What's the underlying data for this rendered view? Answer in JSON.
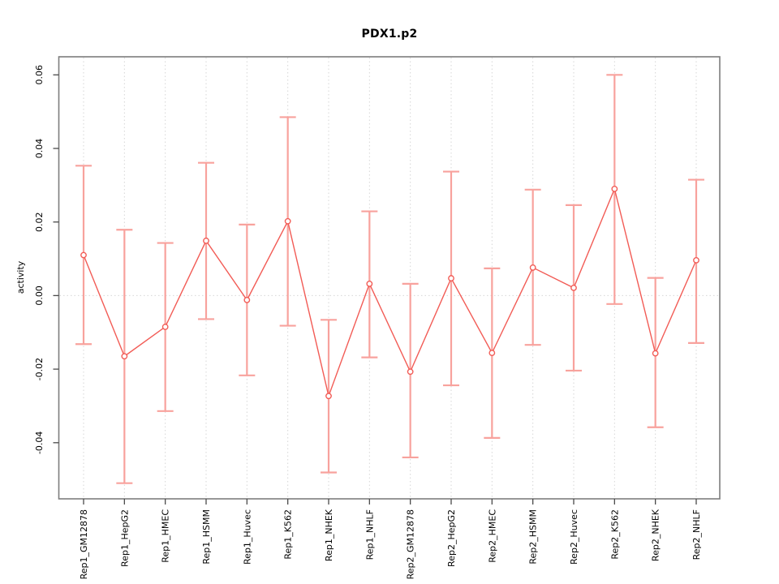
{
  "chart_data": {
    "type": "line",
    "subtype": "points-with-error-bars",
    "title": "PDX1.p2",
    "xlabel": "",
    "ylabel": "activity",
    "categories": [
      "Rep1_GM12878",
      "Rep1_HepG2",
      "Rep1_HMEC",
      "Rep1_HSMM",
      "Rep1_Huvec",
      "Rep1_K562",
      "Rep1_NHEK",
      "Rep1_NHLF",
      "Rep2_GM12878",
      "Rep2_HepG2",
      "Rep2_HMEC",
      "Rep2_HSMM",
      "Rep2_Huvec",
      "Rep2_K562",
      "Rep2_NHEK",
      "Rep2_NHLF"
    ],
    "series": [
      {
        "name": "activity",
        "values": [
          0.011,
          -0.0165,
          -0.0085,
          0.0149,
          -0.0012,
          0.0202,
          -0.0273,
          0.0032,
          -0.0207,
          0.0047,
          -0.0156,
          0.0076,
          0.0021,
          0.029,
          -0.0157,
          0.0096
        ],
        "upper": [
          0.0353,
          0.0179,
          0.0143,
          0.0361,
          0.0193,
          0.0485,
          -0.0066,
          0.0229,
          0.0032,
          0.0337,
          0.0074,
          0.0288,
          0.0246,
          0.06,
          0.0048,
          0.0315
        ],
        "lower": [
          -0.0132,
          -0.051,
          -0.0314,
          -0.0064,
          -0.0217,
          -0.0082,
          -0.0481,
          -0.0168,
          -0.044,
          -0.0244,
          -0.0387,
          -0.0134,
          -0.0204,
          -0.0023,
          -0.0358,
          -0.0129
        ]
      }
    ],
    "yticks": [
      0.06,
      0.04,
      0.02,
      0,
      -0.02,
      -0.04
    ],
    "ytick_labels": [
      "0.06",
      "0.04",
      "0.02",
      "0.00",
      "-0.02",
      "-0.04"
    ],
    "ylim": [
      -0.055,
      0.065
    ],
    "grid": {
      "vertical_gridlines": true,
      "horizontal_gridlines": false,
      "zero_line_dotted": true
    },
    "legend": "none",
    "colors": {
      "point_line": "#f25c56",
      "error_bar": "#f8a29d",
      "grid": "#d6d6d6",
      "box": "#7d7d7d",
      "tick": "#4a4a4a",
      "text": "#000000",
      "background": "#ffffff"
    }
  }
}
